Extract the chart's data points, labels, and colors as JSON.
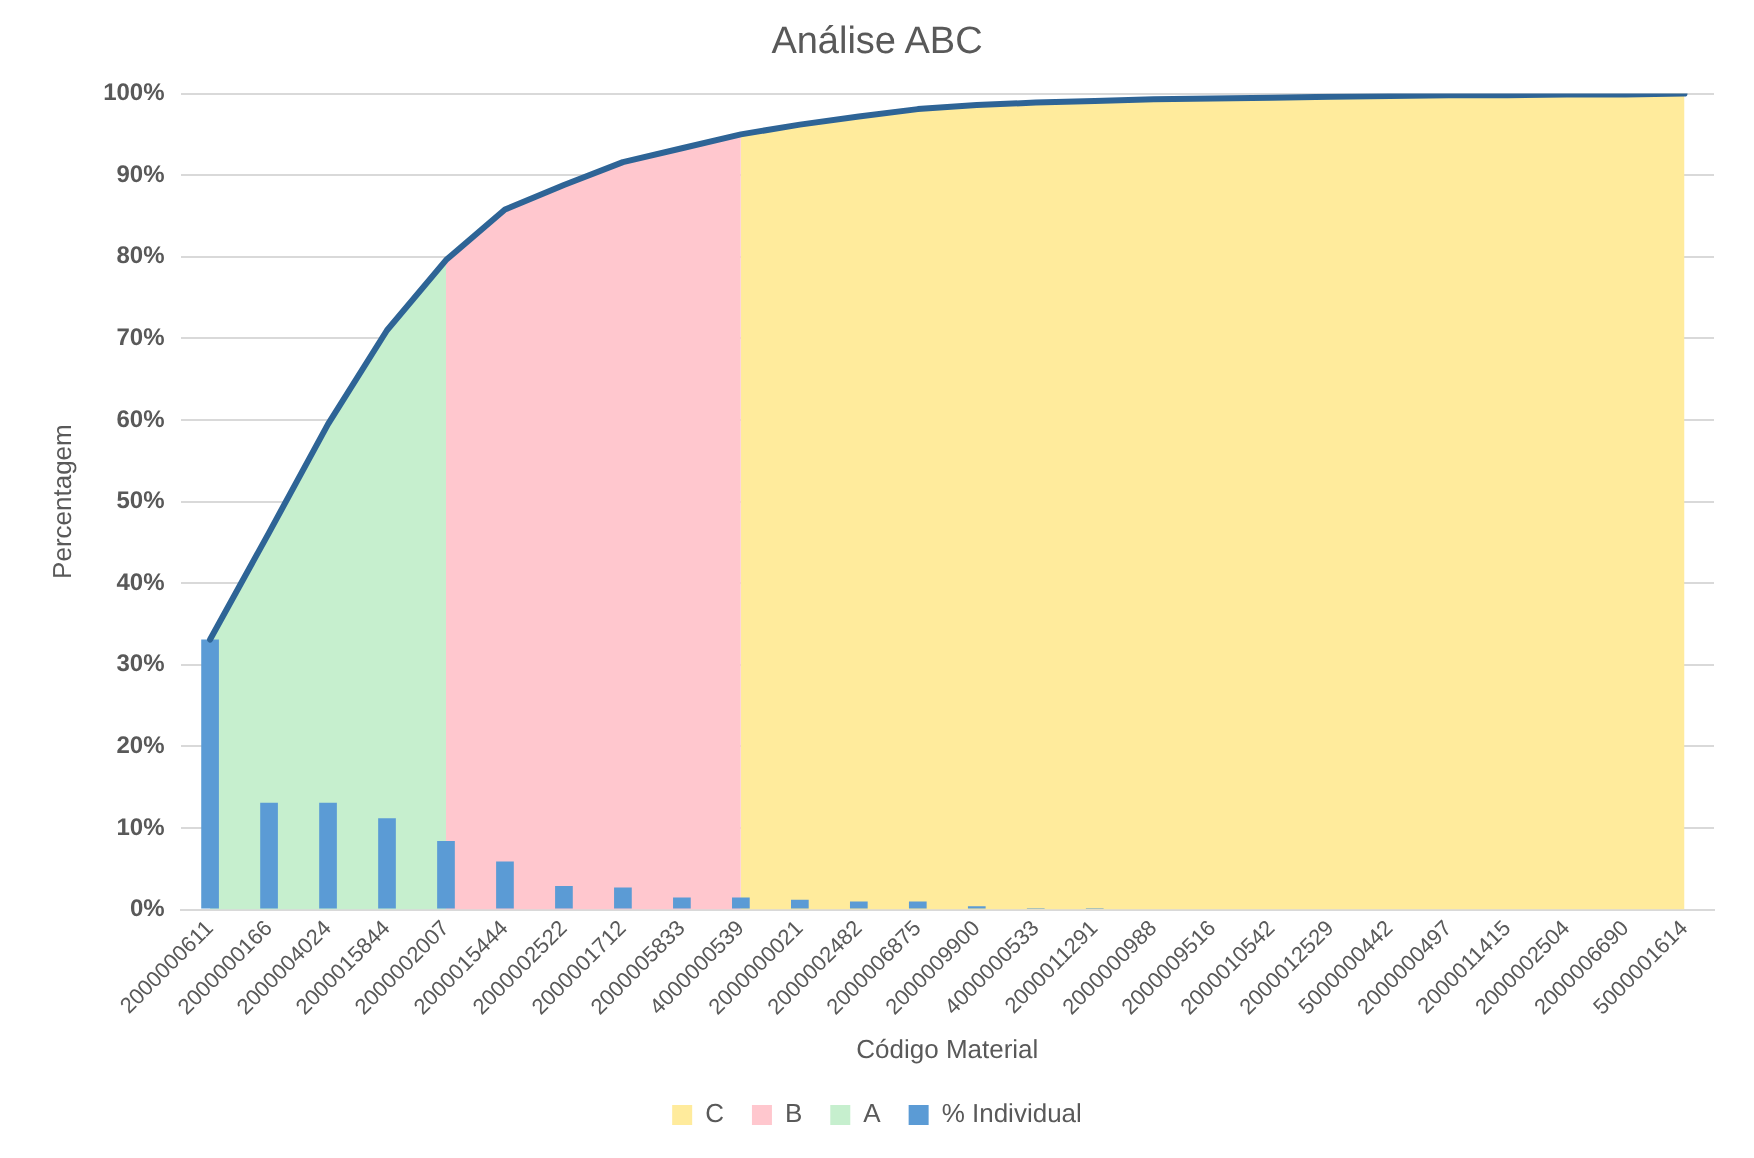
{
  "chart_data": {
    "type": "bar",
    "title": "Análise ABC",
    "xlabel": "Código Material",
    "ylabel": "Percentagem",
    "categories": [
      "2000000611",
      "2000000166",
      "2000004024",
      "2000015844",
      "2000002007",
      "2000015444",
      "2000002522",
      "2000001712",
      "2000005833",
      "4000000539",
      "2000000021",
      "2000002482",
      "2000006875",
      "2000009900",
      "4000000533",
      "2000011291",
      "2000000988",
      "2000009516",
      "2000010542",
      "2000012529",
      "5000000442",
      "2000000497",
      "2000011415",
      "2000002504",
      "2000006690",
      "5000001614"
    ],
    "series": [
      {
        "name": "C",
        "type": "area",
        "color": "#ffeb9c",
        "values": [
          null,
          null,
          null,
          null,
          null,
          null,
          null,
          null,
          null,
          95,
          96.2,
          97.2,
          98.1,
          98.6,
          98.9,
          99.1,
          99.3,
          99.4,
          99.5,
          99.6,
          99.7,
          99.8,
          99.8,
          99.9,
          99.9,
          100
        ]
      },
      {
        "name": "B",
        "type": "area",
        "color": "#ffc7ce",
        "values": [
          null,
          null,
          null,
          null,
          79.6,
          85.8,
          88.8,
          91.6,
          93.3,
          95,
          null,
          null,
          null,
          null,
          null,
          null,
          null,
          null,
          null,
          null,
          null,
          null,
          null,
          null,
          null,
          null
        ]
      },
      {
        "name": "A",
        "type": "area",
        "color": "#c6efce",
        "values": [
          33.1,
          46.2,
          59.5,
          71,
          79.6,
          null,
          null,
          null,
          null,
          null,
          null,
          null,
          null,
          null,
          null,
          null,
          null,
          null,
          null,
          null,
          null,
          null,
          null,
          null,
          null,
          null
        ]
      },
      {
        "name": "% Individual",
        "color": "#5b9bd5",
        "values": [
          33.1,
          13.1,
          13.1,
          11.2,
          8.4,
          5.9,
          2.9,
          2.7,
          1.5,
          1.5,
          1.2,
          1.0,
          1.0,
          0.4,
          0.2,
          0.2,
          0,
          0,
          0,
          0,
          0,
          0,
          0,
          0,
          0,
          0
        ]
      },
      {
        "type": "line",
        "color": "#2e6496",
        "values": [
          33.1,
          46.2,
          59.5,
          71,
          79.6,
          85.8,
          88.8,
          91.6,
          93.3,
          95,
          96.2,
          97.2,
          98.1,
          98.6,
          98.9,
          99.1,
          99.3,
          99.4,
          99.5,
          99.6,
          99.7,
          99.8,
          99.8,
          99.9,
          99.9,
          100
        ]
      }
    ],
    "ylim": [
      0,
      100
    ],
    "yticks": [
      {
        "value": 0,
        "label": "0%"
      },
      {
        "value": 10,
        "label": "10%"
      },
      {
        "value": 20,
        "label": "20%"
      },
      {
        "value": 30,
        "label": "30%"
      },
      {
        "value": 40,
        "label": "40%"
      },
      {
        "value": 50,
        "label": "50%"
      },
      {
        "value": 60,
        "label": "60%"
      },
      {
        "value": 70,
        "label": "70%"
      },
      {
        "value": 80,
        "label": "80%"
      },
      {
        "value": 90,
        "label": "90%"
      },
      {
        "value": 100,
        "label": "100%"
      }
    ],
    "grid": "y",
    "legend": "bottom",
    "marker": "none"
  }
}
